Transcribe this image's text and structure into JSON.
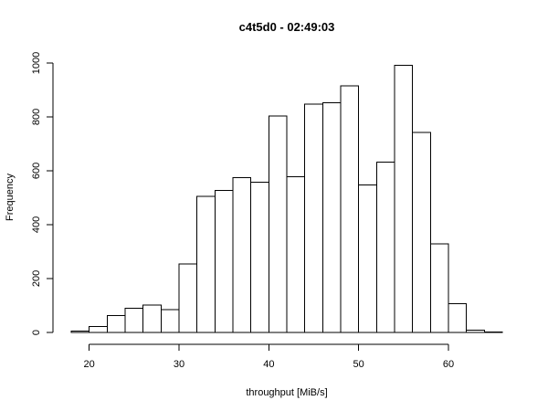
{
  "chart_data": {
    "type": "bar",
    "title": "c4t5d0 - 02:49:03",
    "xlabel": "throughput [MiB/s]",
    "ylabel": "Frequency",
    "xlim": [
      18,
      66
    ],
    "ylim": [
      0,
      1000
    ],
    "xticks": [
      20,
      30,
      40,
      50,
      60
    ],
    "yticks": [
      0,
      200,
      400,
      600,
      800,
      1000
    ],
    "grid": false,
    "legend": "none",
    "bins": [
      {
        "x0": 18,
        "x1": 20,
        "count": 5
      },
      {
        "x0": 20,
        "x1": 22,
        "count": 22
      },
      {
        "x0": 22,
        "x1": 24,
        "count": 62
      },
      {
        "x0": 24,
        "x1": 26,
        "count": 90
      },
      {
        "x0": 26,
        "x1": 28,
        "count": 102
      },
      {
        "x0": 28,
        "x1": 30,
        "count": 85
      },
      {
        "x0": 30,
        "x1": 32,
        "count": 255
      },
      {
        "x0": 32,
        "x1": 34,
        "count": 505
      },
      {
        "x0": 34,
        "x1": 36,
        "count": 527
      },
      {
        "x0": 36,
        "x1": 38,
        "count": 575
      },
      {
        "x0": 38,
        "x1": 40,
        "count": 557
      },
      {
        "x0": 40,
        "x1": 42,
        "count": 803
      },
      {
        "x0": 42,
        "x1": 44,
        "count": 578
      },
      {
        "x0": 44,
        "x1": 46,
        "count": 848
      },
      {
        "x0": 46,
        "x1": 48,
        "count": 853
      },
      {
        "x0": 48,
        "x1": 50,
        "count": 915
      },
      {
        "x0": 50,
        "x1": 52,
        "count": 548
      },
      {
        "x0": 52,
        "x1": 54,
        "count": 632
      },
      {
        "x0": 54,
        "x1": 56,
        "count": 992
      },
      {
        "x0": 56,
        "x1": 58,
        "count": 742
      },
      {
        "x0": 58,
        "x1": 60,
        "count": 328
      },
      {
        "x0": 60,
        "x1": 62,
        "count": 107
      },
      {
        "x0": 62,
        "x1": 64,
        "count": 8
      },
      {
        "x0": 64,
        "x1": 66,
        "count": 1
      }
    ],
    "colors": {
      "bar_fill": "#ffffff",
      "bar_stroke": "#000000",
      "axis": "#000000",
      "background": "#ffffff"
    }
  }
}
